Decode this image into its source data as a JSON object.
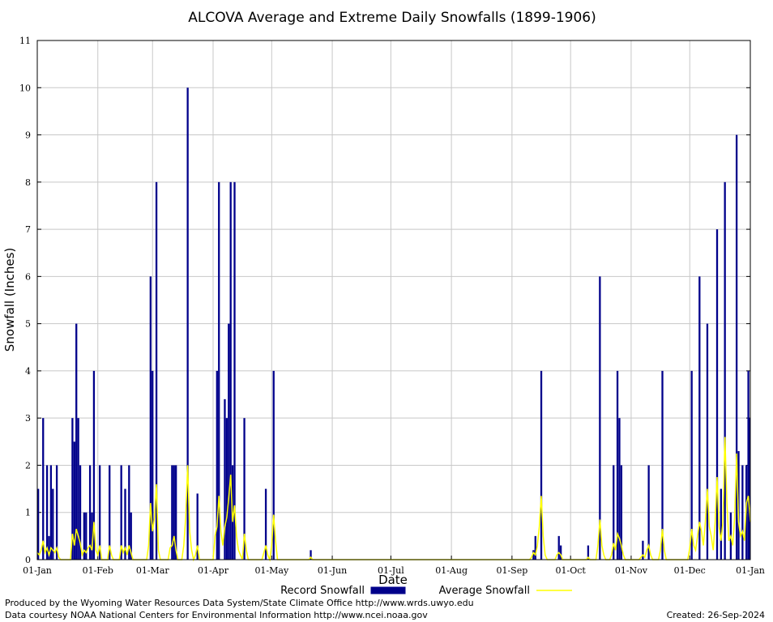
{
  "chart_data": {
    "type": "bar",
    "title": "ALCOVA Average and Extreme Daily Snowfalls (1899-1906)",
    "xlabel": "Date",
    "ylabel": "Snowfall (Inches)",
    "ylim": [
      0,
      11
    ],
    "yticks": [
      "0",
      "1",
      "2",
      "3",
      "4",
      "5",
      "6",
      "7",
      "8",
      "9",
      "10",
      "11"
    ],
    "x_range_days": [
      1,
      366
    ],
    "x_ticks": [
      {
        "label": "01-Jan",
        "day": 1
      },
      {
        "label": "01-Feb",
        "day": 32
      },
      {
        "label": "01-Mar",
        "day": 60
      },
      {
        "label": "01-Apr",
        "day": 91
      },
      {
        "label": "01-May",
        "day": 121
      },
      {
        "label": "01-Jun",
        "day": 152
      },
      {
        "label": "01-Jul",
        "day": 182
      },
      {
        "label": "01-Aug",
        "day": 213
      },
      {
        "label": "01-Sep",
        "day": 244
      },
      {
        "label": "01-Oct",
        "day": 274
      },
      {
        "label": "01-Nov",
        "day": 305
      },
      {
        "label": "01-Dec",
        "day": 335
      },
      {
        "label": "01-Jan",
        "day": 366
      }
    ],
    "grid": true,
    "legend_position": "bottom",
    "series": [
      {
        "name": "Record Snowfall",
        "kind": "bar",
        "color": "#00008b",
        "points": [
          [
            1,
            1.5
          ],
          [
            4,
            3.0
          ],
          [
            6,
            2.0
          ],
          [
            7,
            0.5
          ],
          [
            8,
            2.0
          ],
          [
            9,
            1.5
          ],
          [
            11,
            2.0
          ],
          [
            19,
            3.0
          ],
          [
            20,
            2.5
          ],
          [
            21,
            5.0
          ],
          [
            22,
            3.0
          ],
          [
            23,
            2.0
          ],
          [
            25,
            1.0
          ],
          [
            26,
            1.0
          ],
          [
            28,
            2.0
          ],
          [
            29,
            1.0
          ],
          [
            30,
            4.0
          ],
          [
            33,
            2.0
          ],
          [
            38,
            2.0
          ],
          [
            44,
            2.0
          ],
          [
            46,
            1.5
          ],
          [
            48,
            2.0
          ],
          [
            49,
            1.0
          ],
          [
            59,
            6.0
          ],
          [
            60,
            4.0
          ],
          [
            62,
            8.0
          ],
          [
            70,
            2.0
          ],
          [
            71,
            2.0
          ],
          [
            72,
            2.0
          ],
          [
            78,
            10.0
          ],
          [
            83,
            1.4
          ],
          [
            93,
            4.0
          ],
          [
            94,
            8.0
          ],
          [
            97,
            3.4
          ],
          [
            98,
            3.0
          ],
          [
            99,
            5.0
          ],
          [
            100,
            8.0
          ],
          [
            101,
            2.0
          ],
          [
            102,
            8.0
          ],
          [
            107,
            3.0
          ],
          [
            118,
            1.5
          ],
          [
            122,
            4.0
          ],
          [
            141,
            0.2
          ],
          [
            255,
            0.2
          ],
          [
            256,
            0.5
          ],
          [
            259,
            4.0
          ],
          [
            268,
            0.5
          ],
          [
            269,
            0.3
          ],
          [
            283,
            0.3
          ],
          [
            289,
            6.0
          ],
          [
            296,
            2.0
          ],
          [
            298,
            4.0
          ],
          [
            299,
            3.0
          ],
          [
            300,
            2.0
          ],
          [
            311,
            0.4
          ],
          [
            314,
            2.0
          ],
          [
            321,
            4.0
          ],
          [
            336,
            4.0
          ],
          [
            340,
            6.0
          ],
          [
            344,
            5.0
          ],
          [
            349,
            7.0
          ],
          [
            351,
            1.5
          ],
          [
            353,
            8.0
          ],
          [
            356,
            1.0
          ],
          [
            359,
            9.0
          ],
          [
            360,
            2.3
          ],
          [
            362,
            2.0
          ],
          [
            364,
            2.0
          ],
          [
            365,
            4.0
          ],
          [
            366,
            3.0
          ]
        ]
      },
      {
        "name": "Average Snowfall",
        "kind": "line",
        "color": "#ffff00",
        "points": [
          [
            1,
            0.15
          ],
          [
            2,
            0.1
          ],
          [
            3,
            0.2
          ],
          [
            4,
            0.4
          ],
          [
            5,
            0.15
          ],
          [
            6,
            0.25
          ],
          [
            7,
            0.1
          ],
          [
            8,
            0.25
          ],
          [
            9,
            0.2
          ],
          [
            10,
            0.15
          ],
          [
            11,
            0.25
          ],
          [
            12,
            0.05
          ],
          [
            13,
            0.0
          ],
          [
            18,
            0.0
          ],
          [
            19,
            0.55
          ],
          [
            20,
            0.3
          ],
          [
            21,
            0.65
          ],
          [
            22,
            0.5
          ],
          [
            23,
            0.35
          ],
          [
            24,
            0.1
          ],
          [
            25,
            0.2
          ],
          [
            26,
            0.15
          ],
          [
            27,
            0.25
          ],
          [
            28,
            0.3
          ],
          [
            29,
            0.2
          ],
          [
            30,
            0.8
          ],
          [
            31,
            0.2
          ],
          [
            32,
            0.1
          ],
          [
            33,
            0.3
          ],
          [
            34,
            0.0
          ],
          [
            37,
            0.0
          ],
          [
            38,
            0.3
          ],
          [
            39,
            0.1
          ],
          [
            42,
            0.0
          ],
          [
            44,
            0.3
          ],
          [
            45,
            0.15
          ],
          [
            46,
            0.25
          ],
          [
            47,
            0.1
          ],
          [
            48,
            0.3
          ],
          [
            49,
            0.15
          ],
          [
            50,
            0.0
          ],
          [
            57,
            0.0
          ],
          [
            58,
            0.3
          ],
          [
            59,
            1.2
          ],
          [
            60,
            0.6
          ],
          [
            61,
            0.9
          ],
          [
            62,
            1.6
          ],
          [
            63,
            0.2
          ],
          [
            64,
            0.0
          ],
          [
            68,
            0.0
          ],
          [
            69,
            0.25
          ],
          [
            70,
            0.3
          ],
          [
            71,
            0.5
          ],
          [
            72,
            0.2
          ],
          [
            73,
            0.0
          ],
          [
            76,
            0.3
          ],
          [
            77,
            0.9
          ],
          [
            78,
            2.0
          ],
          [
            79,
            0.6
          ],
          [
            80,
            0.2
          ],
          [
            81,
            0.0
          ],
          [
            82,
            0.1
          ],
          [
            83,
            0.3
          ],
          [
            84,
            0.0
          ],
          [
            91,
            0.0
          ],
          [
            92,
            0.5
          ],
          [
            93,
            0.7
          ],
          [
            94,
            1.35
          ],
          [
            95,
            0.6
          ],
          [
            96,
            0.3
          ],
          [
            97,
            0.7
          ],
          [
            98,
            0.9
          ],
          [
            99,
            1.3
          ],
          [
            100,
            1.8
          ],
          [
            101,
            0.8
          ],
          [
            102,
            1.15
          ],
          [
            103,
            0.5
          ],
          [
            104,
            0.2
          ],
          [
            105,
            0.1
          ],
          [
            107,
            0.55
          ],
          [
            108,
            0.2
          ],
          [
            109,
            0.0
          ],
          [
            116,
            0.0
          ],
          [
            117,
            0.15
          ],
          [
            118,
            0.3
          ],
          [
            119,
            0.1
          ],
          [
            120,
            0.0
          ],
          [
            121,
            0.3
          ],
          [
            122,
            0.95
          ],
          [
            123,
            0.4
          ],
          [
            124,
            0.0
          ],
          [
            140,
            0.0
          ],
          [
            141,
            0.05
          ],
          [
            142,
            0.0
          ],
          [
            252,
            0.0
          ],
          [
            254,
            0.05
          ],
          [
            255,
            0.15
          ],
          [
            256,
            0.1
          ],
          [
            257,
            0.3
          ],
          [
            258,
            0.7
          ],
          [
            259,
            1.35
          ],
          [
            260,
            0.5
          ],
          [
            261,
            0.1
          ],
          [
            262,
            0.0
          ],
          [
            266,
            0.0
          ],
          [
            267,
            0.1
          ],
          [
            268,
            0.15
          ],
          [
            269,
            0.1
          ],
          [
            270,
            0.0
          ],
          [
            282,
            0.0
          ],
          [
            283,
            0.05
          ],
          [
            284,
            0.0
          ],
          [
            287,
            0.0
          ],
          [
            288,
            0.3
          ],
          [
            289,
            0.85
          ],
          [
            290,
            0.3
          ],
          [
            291,
            0.1
          ],
          [
            292,
            0.0
          ],
          [
            294,
            0.0
          ],
          [
            295,
            0.1
          ],
          [
            296,
            0.35
          ],
          [
            297,
            0.2
          ],
          [
            298,
            0.55
          ],
          [
            299,
            0.45
          ],
          [
            300,
            0.3
          ],
          [
            301,
            0.1
          ],
          [
            302,
            0.0
          ],
          [
            309,
            0.0
          ],
          [
            310,
            0.05
          ],
          [
            311,
            0.1
          ],
          [
            312,
            0.05
          ],
          [
            313,
            0.2
          ],
          [
            314,
            0.3
          ],
          [
            315,
            0.1
          ],
          [
            316,
            0.0
          ],
          [
            319,
            0.0
          ],
          [
            320,
            0.2
          ],
          [
            321,
            0.65
          ],
          [
            322,
            0.2
          ],
          [
            323,
            0.0
          ],
          [
            334,
            0.0
          ],
          [
            335,
            0.25
          ],
          [
            336,
            0.65
          ],
          [
            337,
            0.3
          ],
          [
            338,
            0.2
          ],
          [
            339,
            0.5
          ],
          [
            340,
            0.8
          ],
          [
            341,
            0.6
          ],
          [
            342,
            0.3
          ],
          [
            343,
            0.8
          ],
          [
            344,
            1.5
          ],
          [
            345,
            0.7
          ],
          [
            346,
            0.5
          ],
          [
            347,
            0.2
          ],
          [
            348,
            0.8
          ],
          [
            349,
            1.75
          ],
          [
            350,
            0.7
          ],
          [
            351,
            0.4
          ],
          [
            352,
            0.8
          ],
          [
            353,
            2.6
          ],
          [
            354,
            1.2
          ],
          [
            355,
            0.4
          ],
          [
            356,
            0.5
          ],
          [
            357,
            0.3
          ],
          [
            358,
            0.9
          ],
          [
            359,
            2.25
          ],
          [
            360,
            0.8
          ],
          [
            361,
            0.5
          ],
          [
            362,
            0.6
          ],
          [
            363,
            0.4
          ],
          [
            364,
            1.2
          ],
          [
            365,
            1.35
          ],
          [
            366,
            0.8
          ]
        ]
      }
    ]
  },
  "footer": {
    "produced_by": "Produced by the Wyoming Water Resources Data System/State Climate Office http://www.wrds.uwyo.edu",
    "courtesy": "Data courtesy NOAA National Centers for Environmental Information http://www.ncei.noaa.gov",
    "created": "Created:  26-Sep-2024"
  }
}
